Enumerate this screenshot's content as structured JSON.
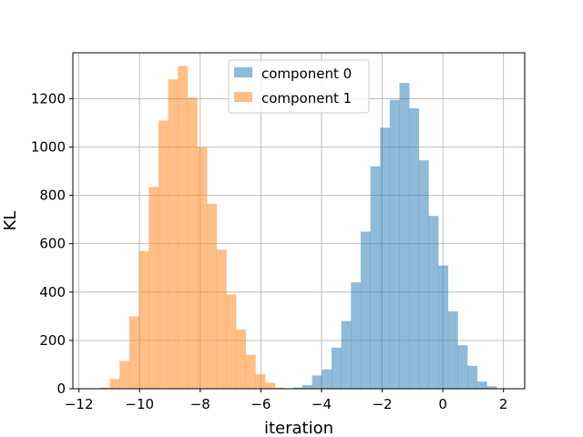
{
  "chart_data": {
    "type": "bar",
    "subtype": "histogram",
    "title": "",
    "xlabel": "iteration",
    "ylabel": "KL",
    "xlim": [
      -12.2,
      2.7
    ],
    "ylim": [
      0,
      1390
    ],
    "xticks": [
      -12,
      -10,
      -8,
      -6,
      -4,
      -2,
      0,
      2
    ],
    "yticks": [
      0,
      200,
      400,
      600,
      800,
      1000,
      1200
    ],
    "grid": true,
    "legend_position": "top-center",
    "series": [
      {
        "name": "component 0",
        "color": "#1f77b4",
        "alpha": 0.5,
        "bin_start": -4.95,
        "bin_width": 0.32,
        "counts": [
          5,
          15,
          55,
          80,
          170,
          280,
          440,
          650,
          920,
          1080,
          1195,
          1265,
          1160,
          945,
          715,
          510,
          320,
          180,
          95,
          30,
          10,
          2
        ]
      },
      {
        "name": "component 1",
        "color": "#ff7f0e",
        "alpha": 0.5,
        "bin_start": -11.3,
        "bin_width": 0.32,
        "counts": [
          5,
          40,
          115,
          300,
          570,
          835,
          1110,
          1280,
          1335,
          1205,
          1000,
          765,
          575,
          390,
          245,
          140,
          60,
          25,
          5
        ]
      }
    ]
  }
}
